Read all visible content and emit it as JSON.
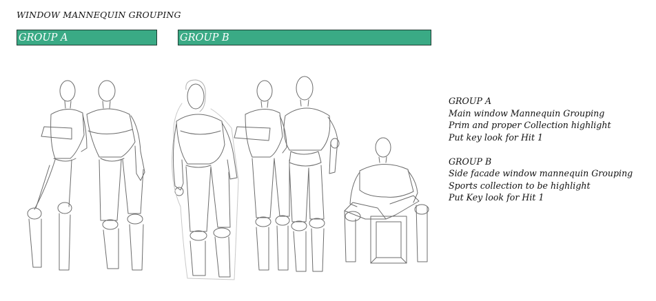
{
  "title": "WINDOW MANNEQUIN GROUPING",
  "groups": {
    "a": {
      "label": "GROUP A",
      "color": "#3aaa85"
    },
    "b": {
      "label": "GROUP B",
      "color": "#3aaa85"
    }
  },
  "notes": {
    "a": {
      "heading": "GROUP A",
      "lines": [
        "Main window Mannequin Grouping",
        "Prim and proper Collection highlight",
        "Put key look for Hit 1"
      ]
    },
    "b": {
      "heading": "GROUP B",
      "lines": [
        "Side facade window mannequin Grouping",
        "Sports collection to be highlight",
        "Put Key look for Hit 1"
      ]
    }
  }
}
